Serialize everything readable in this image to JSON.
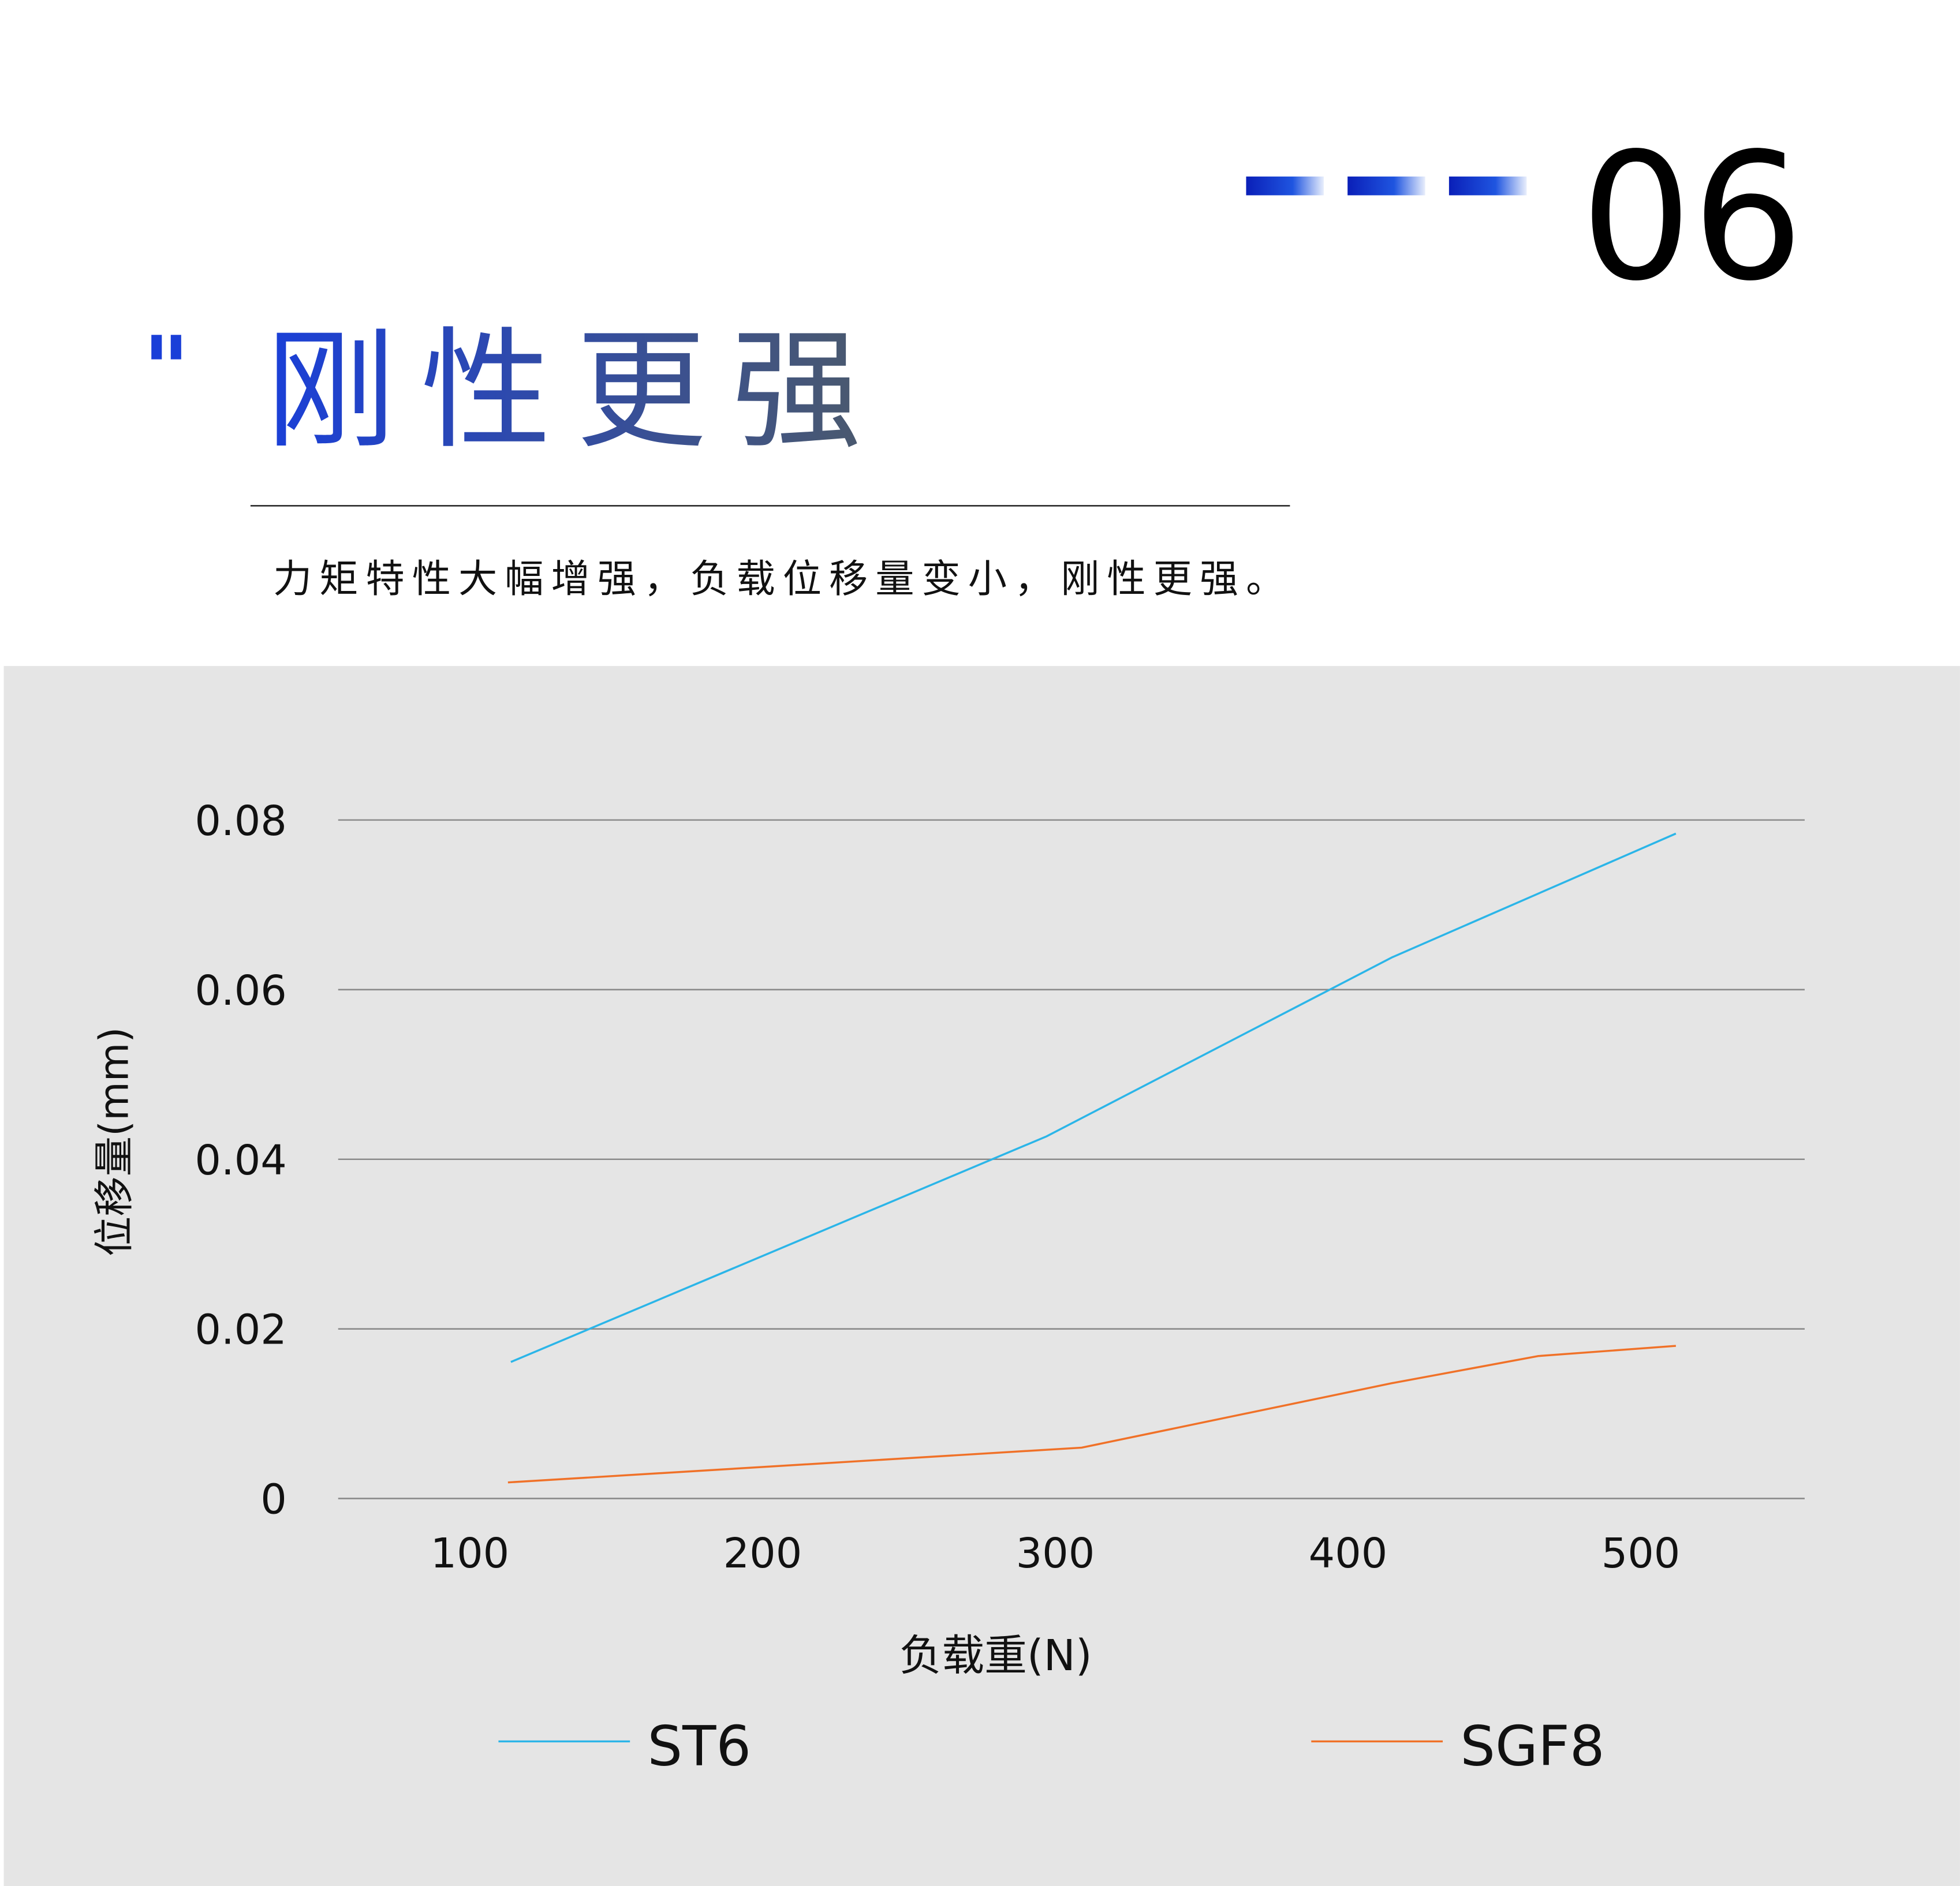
{
  "header": {
    "number": "06",
    "quote": "\"",
    "title": "刚性更强",
    "subtitle": "力矩特性大幅增强，负载位移量变小，刚性更强。"
  },
  "chart_data": {
    "type": "line",
    "x_label": "负载重(N)",
    "y_label": "位移量(mm)",
    "xlim": [
      55,
      556
    ],
    "xticks": [
      100,
      200,
      300,
      400,
      500
    ],
    "ylim": [
      0,
      0.08
    ],
    "yticks": [
      0,
      0.02,
      0.04,
      0.06,
      0.08
    ],
    "grid": true,
    "legend": "bottom",
    "series": [
      {
        "name": "ST6",
        "color": "#2bb5e8",
        "x": [
          114,
          297,
          415,
          512
        ],
        "values": [
          0.0161,
          0.0427,
          0.0638,
          0.0784
        ]
      },
      {
        "name": "SGF8",
        "color": "#f07128",
        "x": [
          113,
          309,
          415,
          465,
          512
        ],
        "values": [
          0.0019,
          0.006,
          0.0136,
          0.0168,
          0.018
        ]
      }
    ]
  }
}
